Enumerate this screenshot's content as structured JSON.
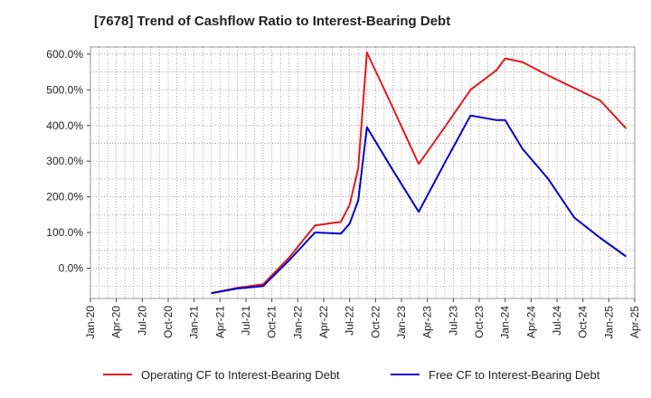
{
  "chart_data": {
    "type": "line",
    "title": "[7678]  Trend of Cashflow Ratio to Interest-Bearing Debt",
    "xlabel": "",
    "ylabel": "",
    "x_ticks": [
      "Jan-20",
      "Apr-20",
      "Jul-20",
      "Oct-20",
      "Jan-21",
      "Apr-21",
      "Jul-21",
      "Oct-21",
      "Jan-22",
      "Apr-22",
      "Jul-22",
      "Oct-22",
      "Jan-23",
      "Apr-23",
      "Jul-23",
      "Oct-23",
      "Jan-24",
      "Apr-24",
      "Jul-24",
      "Oct-24",
      "Jan-25",
      "Apr-25"
    ],
    "y_ticks": [
      "0.0%",
      "100.0%",
      "200.0%",
      "300.0%",
      "400.0%",
      "500.0%",
      "600.0%"
    ],
    "ylim": [
      -85,
      620
    ],
    "grid": true,
    "legend_position": "bottom",
    "series": [
      {
        "name": "Operating CF to Interest-Bearing Debt",
        "color": "#e31a1c",
        "points": [
          [
            "2021-03-31",
            -70
          ],
          [
            "2021-06-30",
            -55
          ],
          [
            "2021-09-30",
            -45
          ],
          [
            "2021-12-31",
            30
          ],
          [
            "2022-03-31",
            120
          ],
          [
            "2022-06-30",
            130
          ],
          [
            "2022-07-31",
            178
          ],
          [
            "2022-08-31",
            280
          ],
          [
            "2022-09-30",
            605
          ],
          [
            "2022-12-31",
            450
          ],
          [
            "2023-03-31",
            292
          ],
          [
            "2023-06-30",
            395
          ],
          [
            "2023-09-30",
            500
          ],
          [
            "2023-12-31",
            555
          ],
          [
            "2024-01-31",
            588
          ],
          [
            "2024-03-31",
            578
          ],
          [
            "2024-06-30",
            540
          ],
          [
            "2024-09-30",
            505
          ],
          [
            "2024-12-31",
            470
          ],
          [
            "2025-03-31",
            392
          ]
        ]
      },
      {
        "name": "Free CF to Interest-Bearing Debt",
        "color": "#0000cc",
        "points": [
          [
            "2021-03-31",
            -70
          ],
          [
            "2021-06-30",
            -57
          ],
          [
            "2021-09-30",
            -50
          ],
          [
            "2021-12-31",
            22
          ],
          [
            "2022-03-31",
            100
          ],
          [
            "2022-06-30",
            97
          ],
          [
            "2022-07-31",
            125
          ],
          [
            "2022-08-31",
            190
          ],
          [
            "2022-09-30",
            395
          ],
          [
            "2022-12-31",
            275
          ],
          [
            "2023-03-31",
            158
          ],
          [
            "2023-06-30",
            295
          ],
          [
            "2023-09-30",
            428
          ],
          [
            "2023-12-31",
            415
          ],
          [
            "2024-01-31",
            415
          ],
          [
            "2024-03-31",
            335
          ],
          [
            "2024-06-30",
            250
          ],
          [
            "2024-09-30",
            142
          ],
          [
            "2024-12-31",
            85
          ],
          [
            "2025-03-31",
            33
          ]
        ]
      }
    ]
  }
}
